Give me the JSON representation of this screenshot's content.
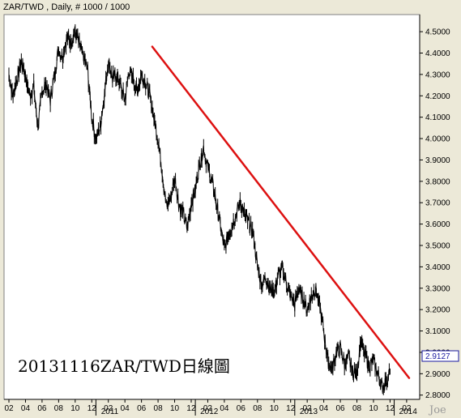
{
  "chart_data": {
    "type": "line",
    "title": "ZAR/TWD , Daily, # 1000 / 1000",
    "annotation": "20131116ZAR/TWD日線圖",
    "signature": "Joe",
    "last_value": "2.9127",
    "ylim": [
      2.78,
      4.58
    ],
    "y_ticks": [
      "4.5000",
      "4.4000",
      "4.3000",
      "4.2000",
      "4.1000",
      "4.0000",
      "3.9000",
      "3.8000",
      "3.7000",
      "3.6000",
      "3.5000",
      "3.4000",
      "3.3000",
      "3.2000",
      "3.1000",
      "3.0000",
      "2.9000",
      "2.8000"
    ],
    "x_ticks": [
      "02",
      "04",
      "06",
      "08",
      "10",
      "12",
      "02",
      "04",
      "06",
      "08",
      "10",
      "12",
      "02",
      "04",
      "06",
      "08",
      "10",
      "12",
      "02",
      "04",
      "06",
      "08",
      "10",
      "12",
      "02"
    ],
    "x_years": [
      "2011",
      "2012",
      "2013",
      "2014"
    ],
    "x_range_months": [
      0,
      48.5
    ],
    "series": [
      {
        "months": [
          0,
          0.5,
          1,
          1.5,
          2,
          2.5,
          3,
          3.5,
          4,
          4.5,
          5,
          5.5,
          6,
          6.5,
          7,
          7.5,
          8,
          8.5,
          9,
          9.5,
          10,
          10.5,
          11,
          11.5,
          12,
          12.5,
          13,
          13.5,
          14,
          14.5,
          15,
          15.5,
          16,
          16.5,
          17,
          17.5,
          18,
          18.5,
          19,
          19.5,
          20,
          20.5,
          21,
          21.5,
          22,
          22.5,
          23,
          23.5,
          24,
          24.5,
          25,
          25.5,
          26,
          26.5,
          27,
          27.5,
          28,
          28.5,
          29,
          29.5,
          30,
          30.5,
          31,
          31.5,
          32,
          32.5,
          33,
          33.5,
          34,
          34.5,
          35,
          35.5,
          36,
          36.5,
          37,
          37.5,
          38,
          38.5,
          39,
          39.5,
          40,
          40.5,
          41,
          41.5,
          42,
          42.5,
          43,
          43.5,
          44,
          44.5,
          45,
          45.5,
          46
        ],
        "values": [
          4.3,
          4.2,
          4.28,
          4.36,
          4.3,
          4.2,
          4.24,
          4.05,
          4.22,
          4.26,
          4.18,
          4.3,
          4.42,
          4.38,
          4.48,
          4.46,
          4.5,
          4.44,
          4.38,
          4.32,
          4.1,
          4.0,
          4.05,
          4.2,
          4.36,
          4.28,
          4.3,
          4.24,
          4.18,
          4.32,
          4.28,
          4.22,
          4.3,
          4.26,
          4.2,
          4.1,
          4.0,
          3.85,
          3.68,
          3.72,
          3.82,
          3.7,
          3.65,
          3.58,
          3.7,
          3.76,
          3.88,
          3.96,
          3.86,
          3.8,
          3.7,
          3.6,
          3.48,
          3.55,
          3.6,
          3.66,
          3.7,
          3.64,
          3.6,
          3.55,
          3.4,
          3.32,
          3.35,
          3.3,
          3.28,
          3.36,
          3.4,
          3.32,
          3.26,
          3.22,
          3.3,
          3.25,
          3.2,
          3.26,
          3.3,
          3.22,
          3.1,
          2.96,
          2.92,
          3.0,
          3.02,
          2.95,
          2.98,
          2.9,
          2.92,
          3.05,
          2.98,
          2.94,
          2.96,
          2.9,
          2.84,
          2.86,
          2.91
        ]
      }
    ],
    "trendline": {
      "color": "#dd1111",
      "start": {
        "month": 17.3,
        "value": 4.43
      },
      "end": {
        "month": 48.3,
        "value": 2.88
      }
    }
  }
}
